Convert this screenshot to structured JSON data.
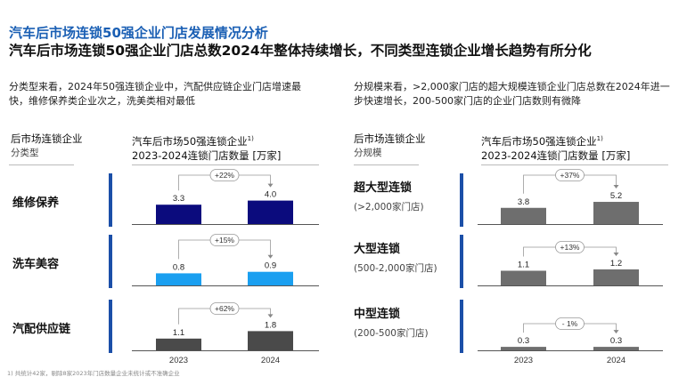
{
  "title": "汽车后市场连锁50强企业门店发展情况分析",
  "subtitle": "汽车后市场连锁50强企业门店总数2024年整体持续增长，不同类型连锁企业增长趋势有所分化",
  "left": {
    "intro": "分类型来看，2024年50强连锁企业中，汽配供应链企业门店增速最快，维修保养类企业次之，洗美类相对最低",
    "col1_title": "后市场连锁企业",
    "col1_sub": "分类型",
    "col2_title": "汽车后市场50强连锁企业",
    "col2_sup": "1)",
    "col2_sub": "2023-2024连锁门店数量 [万家]"
  },
  "right": {
    "intro": "分规模来看，>2,000家门店的超大规模连锁企业门店总数在2024年进一步快速增长，200-500家门店的企业门店数则有微降",
    "col1_title": "后市场连锁企业",
    "col1_sub": "分规模",
    "col2_title": "汽车后市场50强连锁企业",
    "col2_sup": "1)",
    "col2_sub": "2023-2024连锁门店数量 [万家]"
  },
  "footnote": "1) 共统计42家，剔除8家2023年门店数量企业未统计或不准确企业",
  "chart_data": [
    {
      "type": "bar",
      "panel": "left",
      "categories": [
        "2023",
        "2024"
      ],
      "unit": "万家",
      "rows": [
        {
          "label": "维修保养",
          "sub": "",
          "values": [
            3.3,
            4.0
          ],
          "labels": [
            "3.3",
            "4.0"
          ],
          "growth": "+22%",
          "color": "#0b0b7d"
        },
        {
          "label": "洗车美容",
          "sub": "",
          "values": [
            0.8,
            0.9
          ],
          "labels": [
            "0.8",
            "0.9"
          ],
          "growth": "+15%",
          "color": "#1a9ff0"
        },
        {
          "label": "汽配供应链",
          "sub": "",
          "values": [
            1.1,
            1.8
          ],
          "labels": [
            "1.1",
            "1.8"
          ],
          "growth": "+62%",
          "color": "#4a4a4a"
        }
      ]
    },
    {
      "type": "bar",
      "panel": "right",
      "categories": [
        "2023",
        "2024"
      ],
      "unit": "万家",
      "rows": [
        {
          "label": "超大型连锁",
          "sub": "(>2,000家门店)",
          "values": [
            3.8,
            5.2
          ],
          "labels": [
            "3.8",
            "5.2"
          ],
          "growth": "+37%",
          "color": "#6e6e6e"
        },
        {
          "label": "大型连锁",
          "sub": "(500-2,000家门店)",
          "values": [
            1.1,
            1.2
          ],
          "labels": [
            "1.1",
            "1.2"
          ],
          "growth": "+13%",
          "color": "#6e6e6e"
        },
        {
          "label": "中型连锁",
          "sub": "(200-500家门店)",
          "values": [
            0.3,
            0.3
          ],
          "labels": [
            "0.3",
            "0.3"
          ],
          "growth": "- 1%",
          "color": "#6e6e6e"
        }
      ]
    }
  ]
}
